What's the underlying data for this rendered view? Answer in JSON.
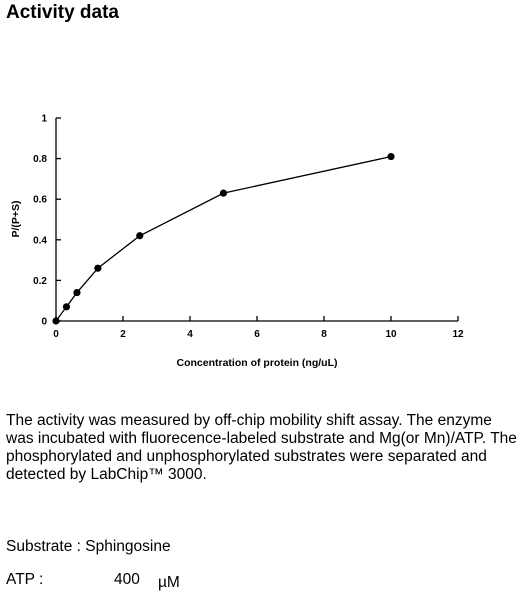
{
  "heading": "Activity data",
  "chart_data": {
    "type": "line",
    "xlabel": "Concentration of protein (ng/uL)",
    "ylabel": "P/(P+S)",
    "xlim": [
      0,
      12
    ],
    "ylim": [
      0,
      1
    ],
    "x_ticks": [
      "0",
      "2",
      "4",
      "6",
      "8",
      "10",
      "12"
    ],
    "y_ticks": [
      "0",
      "0.2",
      "0.4",
      "0.6",
      "0.8",
      "1"
    ],
    "x_tick_values": [
      0,
      2,
      4,
      6,
      8,
      10,
      12
    ],
    "y_tick_values": [
      0,
      0.2,
      0.4,
      0.6,
      0.8,
      1
    ],
    "grid": false,
    "series": [
      {
        "x": [
          0,
          0.3125,
          0.625,
          1.25,
          2.5,
          5,
          10
        ],
        "y": [
          0,
          0.07,
          0.14,
          0.26,
          0.42,
          0.63,
          0.81
        ]
      }
    ]
  },
  "description": "The activity was measured by off-chip mobility shift assay. The enzyme was incubated with fluorecence-labeled  substrate and Mg(or Mn)/ATP. The phosphorylated and unphosphorylated substrates were separated and detected by LabChip™ 3000.",
  "substrate": {
    "label": "Substrate : Sphingosine"
  },
  "atp": {
    "label": "ATP :",
    "value": "400",
    "unit": "µM"
  }
}
